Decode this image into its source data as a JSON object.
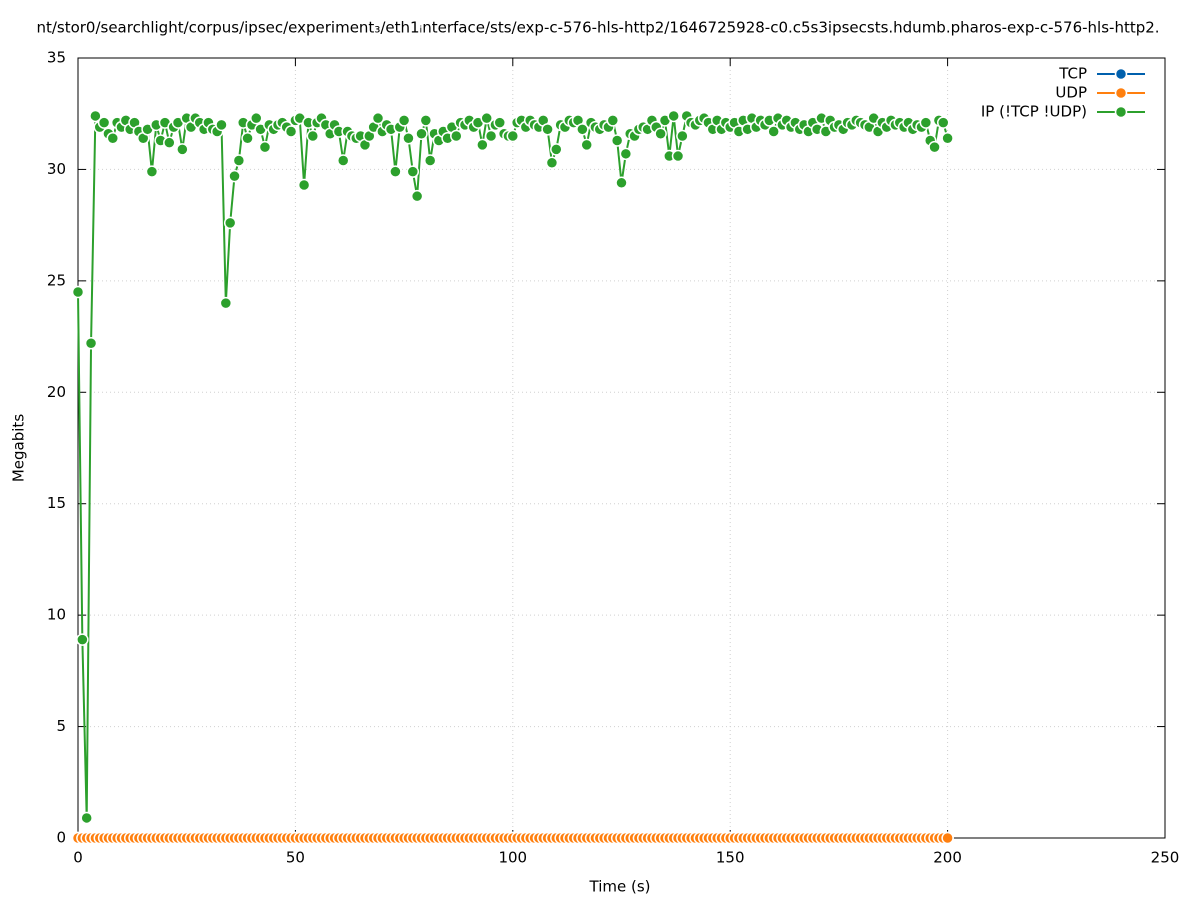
{
  "chart_data": {
    "type": "line",
    "title": "nt/stor0/searchlight/corpus/ipsec/experiment₃/eth1ᵢnterface/sts/exp-c-576-hls-http2/1646725928-c0.c5s3ipsecsts.hdumb.pharos-exp-c-576-hls-http2.",
    "x_label": "Time (s)",
    "y_label": "Megabits",
    "xlim": [
      0,
      250
    ],
    "xticks": [
      0,
      50,
      100,
      150,
      200,
      250
    ],
    "ylim": [
      0,
      35
    ],
    "yticks": [
      0,
      5,
      10,
      15,
      20,
      25,
      30,
      35
    ],
    "grid": true,
    "legend": "top-right",
    "x": [
      0,
      1,
      2,
      3,
      4,
      5,
      6,
      7,
      8,
      9,
      10,
      11,
      12,
      13,
      14,
      15,
      16,
      17,
      18,
      19,
      20,
      21,
      22,
      23,
      24,
      25,
      26,
      27,
      28,
      29,
      30,
      31,
      32,
      33,
      34,
      35,
      36,
      37,
      38,
      39,
      40,
      41,
      42,
      43,
      44,
      45,
      46,
      47,
      48,
      49,
      50,
      51,
      52,
      53,
      54,
      55,
      56,
      57,
      58,
      59,
      60,
      61,
      62,
      63,
      64,
      65,
      66,
      67,
      68,
      69,
      70,
      71,
      72,
      73,
      74,
      75,
      76,
      77,
      78,
      79,
      80,
      81,
      82,
      83,
      84,
      85,
      86,
      87,
      88,
      89,
      90,
      91,
      92,
      93,
      94,
      95,
      96,
      97,
      98,
      99,
      100,
      101,
      102,
      103,
      104,
      105,
      106,
      107,
      108,
      109,
      110,
      111,
      112,
      113,
      114,
      115,
      116,
      117,
      118,
      119,
      120,
      121,
      122,
      123,
      124,
      125,
      126,
      127,
      128,
      129,
      130,
      131,
      132,
      133,
      134,
      135,
      136,
      137,
      138,
      139,
      140,
      141,
      142,
      143,
      144,
      145,
      146,
      147,
      148,
      149,
      150,
      151,
      152,
      153,
      154,
      155,
      156,
      157,
      158,
      159,
      160,
      161,
      162,
      163,
      164,
      165,
      166,
      167,
      168,
      169,
      170,
      171,
      172,
      173,
      174,
      175,
      176,
      177,
      178,
      179,
      180,
      181,
      182,
      183,
      184,
      185,
      186,
      187,
      188,
      189,
      190,
      191,
      192,
      193,
      194,
      195,
      196,
      197,
      198,
      199,
      200
    ],
    "series": [
      {
        "name": "TCP",
        "color": "#0060ad",
        "values": [
          0,
          0,
          0,
          0,
          0,
          0,
          0,
          0,
          0,
          0,
          0,
          0,
          0,
          0,
          0,
          0,
          0,
          0,
          0,
          0,
          0,
          0,
          0,
          0,
          0,
          0,
          0,
          0,
          0,
          0,
          0,
          0,
          0,
          0,
          0,
          0,
          0,
          0,
          0,
          0,
          0,
          0,
          0,
          0,
          0,
          0,
          0,
          0,
          0,
          0,
          0,
          0,
          0,
          0,
          0,
          0,
          0,
          0,
          0,
          0,
          0,
          0,
          0,
          0,
          0,
          0,
          0,
          0,
          0,
          0,
          0,
          0,
          0,
          0,
          0,
          0,
          0,
          0,
          0,
          0,
          0,
          0,
          0,
          0,
          0,
          0,
          0,
          0,
          0,
          0,
          0,
          0,
          0,
          0,
          0,
          0,
          0,
          0,
          0,
          0,
          0,
          0,
          0,
          0,
          0,
          0,
          0,
          0,
          0,
          0,
          0,
          0,
          0,
          0,
          0,
          0,
          0,
          0,
          0,
          0,
          0,
          0,
          0,
          0,
          0,
          0,
          0,
          0,
          0,
          0,
          0,
          0,
          0,
          0,
          0,
          0,
          0,
          0,
          0,
          0,
          0,
          0,
          0,
          0,
          0,
          0,
          0,
          0,
          0,
          0,
          0,
          0,
          0,
          0,
          0,
          0,
          0,
          0,
          0,
          0,
          0,
          0,
          0,
          0,
          0,
          0,
          0,
          0,
          0,
          0,
          0,
          0,
          0,
          0,
          0,
          0,
          0,
          0,
          0,
          0,
          0,
          0,
          0,
          0,
          0,
          0,
          0,
          0,
          0,
          0,
          0,
          0,
          0,
          0,
          0,
          0,
          0,
          0,
          0,
          0,
          0
        ]
      },
      {
        "name": "UDP",
        "color": "#ff7f0e",
        "values": [
          0,
          0,
          0,
          0,
          0,
          0,
          0,
          0,
          0,
          0,
          0,
          0,
          0,
          0,
          0,
          0,
          0,
          0,
          0,
          0,
          0,
          0,
          0,
          0,
          0,
          0,
          0,
          0,
          0,
          0,
          0,
          0,
          0,
          0,
          0,
          0,
          0,
          0,
          0,
          0,
          0,
          0,
          0,
          0,
          0,
          0,
          0,
          0,
          0,
          0,
          0,
          0,
          0,
          0,
          0,
          0,
          0,
          0,
          0,
          0,
          0,
          0,
          0,
          0,
          0,
          0,
          0,
          0,
          0,
          0,
          0,
          0,
          0,
          0,
          0,
          0,
          0,
          0,
          0,
          0,
          0,
          0,
          0,
          0,
          0,
          0,
          0,
          0,
          0,
          0,
          0,
          0,
          0,
          0,
          0,
          0,
          0,
          0,
          0,
          0,
          0,
          0,
          0,
          0,
          0,
          0,
          0,
          0,
          0,
          0,
          0,
          0,
          0,
          0,
          0,
          0,
          0,
          0,
          0,
          0,
          0,
          0,
          0,
          0,
          0,
          0,
          0,
          0,
          0,
          0,
          0,
          0,
          0,
          0,
          0,
          0,
          0,
          0,
          0,
          0,
          0,
          0,
          0,
          0,
          0,
          0,
          0,
          0,
          0,
          0,
          0,
          0,
          0,
          0,
          0,
          0,
          0,
          0,
          0,
          0,
          0,
          0,
          0,
          0,
          0,
          0,
          0,
          0,
          0,
          0,
          0,
          0,
          0,
          0,
          0,
          0,
          0,
          0,
          0,
          0,
          0,
          0,
          0,
          0,
          0,
          0,
          0,
          0,
          0,
          0,
          0,
          0,
          0,
          0,
          0,
          0,
          0,
          0,
          0,
          0,
          0
        ]
      },
      {
        "name": "IP (!TCP  !UDP)",
        "color": "#2ca02c",
        "values": [
          24.5,
          8.9,
          0.9,
          22.2,
          32.4,
          31.9,
          32.1,
          31.6,
          31.4,
          32.1,
          31.9,
          32.2,
          31.8,
          32.1,
          31.7,
          31.4,
          31.8,
          29.9,
          32.0,
          31.3,
          32.1,
          31.2,
          31.9,
          32.1,
          30.9,
          32.3,
          31.9,
          32.3,
          32.1,
          31.8,
          32.1,
          31.8,
          31.7,
          32.0,
          24.0,
          27.6,
          29.7,
          30.4,
          32.1,
          31.4,
          32.0,
          32.3,
          31.8,
          31.0,
          32.0,
          31.8,
          32.0,
          32.1,
          31.9,
          31.7,
          32.2,
          32.3,
          29.3,
          32.1,
          31.5,
          32.1,
          32.3,
          32.0,
          31.6,
          32.0,
          31.7,
          30.4,
          31.7,
          31.5,
          31.4,
          31.5,
          31.1,
          31.5,
          31.9,
          32.3,
          31.7,
          32.0,
          31.8,
          29.9,
          31.9,
          32.2,
          31.4,
          29.9,
          28.8,
          31.6,
          32.2,
          30.4,
          31.6,
          31.3,
          31.7,
          31.4,
          31.9,
          31.5,
          32.1,
          32.0,
          32.2,
          31.9,
          32.1,
          31.1,
          32.3,
          31.5,
          32.0,
          32.1,
          31.6,
          31.5,
          31.5,
          32.1,
          32.2,
          31.9,
          32.2,
          32.0,
          31.9,
          32.2,
          31.8,
          30.3,
          30.9,
          32.0,
          31.9,
          32.2,
          32.1,
          32.2,
          31.8,
          31.1,
          32.1,
          31.9,
          31.8,
          32.0,
          31.9,
          32.2,
          31.3,
          29.4,
          30.7,
          31.6,
          31.5,
          31.8,
          31.9,
          31.8,
          32.2,
          31.9,
          31.6,
          32.2,
          30.6,
          32.4,
          30.6,
          31.5,
          32.4,
          32.1,
          32.0,
          32.2,
          32.3,
          32.1,
          31.8,
          32.2,
          31.8,
          32.1,
          31.9,
          32.1,
          31.7,
          32.2,
          31.8,
          32.3,
          31.9,
          32.2,
          32.0,
          32.2,
          31.7,
          32.3,
          32.0,
          32.2,
          31.9,
          32.1,
          31.8,
          32.0,
          31.7,
          32.1,
          31.8,
          32.3,
          31.7,
          32.2,
          31.9,
          32.0,
          31.8,
          32.1,
          32.0,
          32.2,
          32.1,
          32.0,
          31.9,
          32.3,
          31.7,
          32.1,
          31.9,
          32.2,
          32.0,
          32.1,
          31.9,
          32.1,
          31.8,
          32.0,
          31.9,
          32.1,
          31.3,
          31.0,
          32.2,
          32.1,
          31.4
        ]
      }
    ]
  }
}
